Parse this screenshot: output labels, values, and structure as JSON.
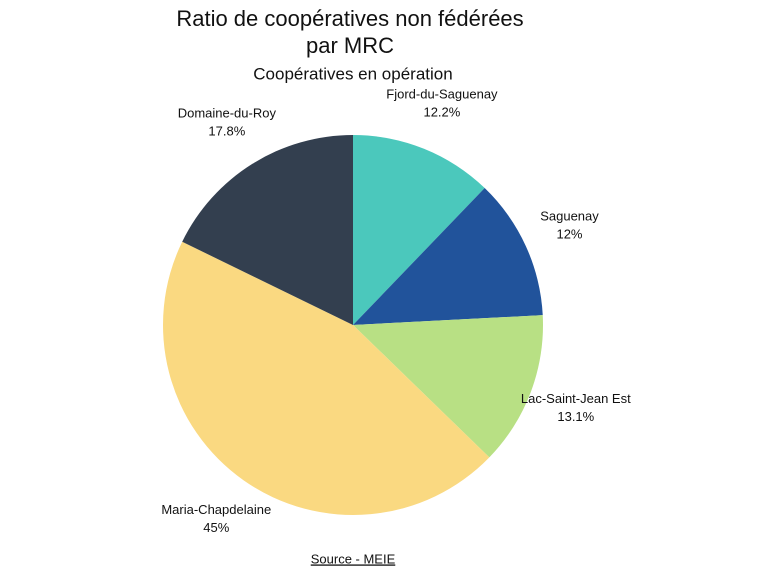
{
  "chart_data": {
    "type": "pie",
    "title": [
      "Ratio de coopératives non fédérées",
      "par MRC"
    ],
    "subtitle": "Coopératives en opération",
    "categories": [
      "Fjord-du-Saguenay",
      "Saguenay",
      "Lac-Saint-Jean Est",
      "Maria-Chapdelaine",
      "Domaine-du-Roy"
    ],
    "values": [
      12.2,
      12,
      13.1,
      45,
      17.8
    ],
    "value_labels": [
      "12.2%",
      "12%",
      "13.1%",
      "45%",
      "17.8%"
    ],
    "colors": [
      "#4bc8bc",
      "#21539b",
      "#b8e084",
      "#fad981",
      "#333f4f"
    ],
    "source": "Source - MEIE"
  }
}
